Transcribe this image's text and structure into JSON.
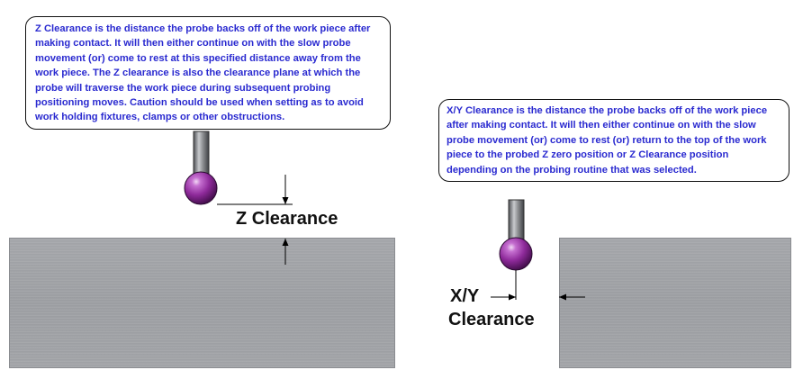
{
  "z_callout": {
    "text": "Z Clearance is the distance the probe backs off of the work piece after making contact.  It will then either continue on with the slow probe movement (or) come to rest at this specified distance away from the work piece.  The Z clearance is also the clearance plane at which the probe will traverse the work piece during subsequent probing positioning moves.  Caution should be used when setting as to avoid work holding fixtures, clamps or other obstructions."
  },
  "xy_callout": {
    "text": "X/Y Clearance is the distance the probe backs off of the work piece after making contact.  It will then either continue on with the slow probe movement (or) come to rest (or) return to the top of the work piece to the probed Z zero position or Z Clearance position depending on the probing routine that was selected."
  },
  "z_label": "Z Clearance",
  "xy_label": {
    "line1": "X/Y",
    "line2": "Clearance"
  },
  "colors": {
    "callout_text": "#2a2ad0",
    "probe_ball": "#8e2a9a",
    "work_piece": "#a0a2a6"
  }
}
